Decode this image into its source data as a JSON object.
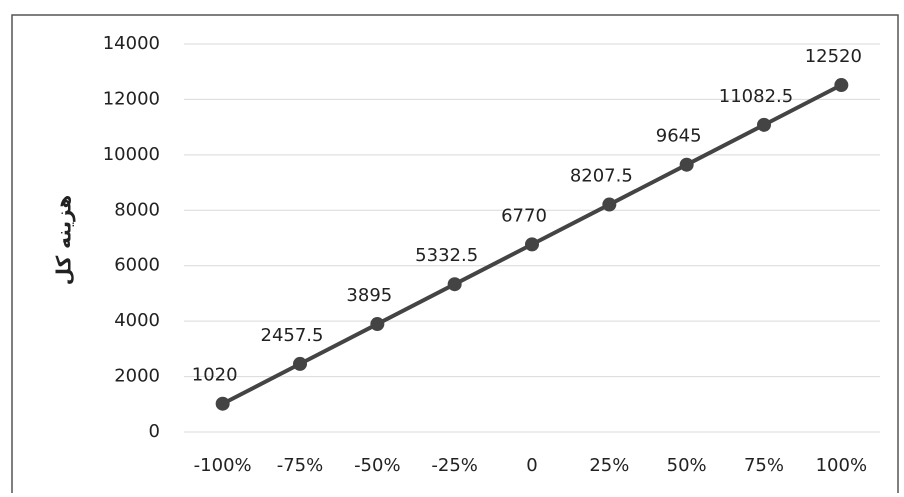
{
  "chart_data": {
    "type": "line",
    "y_label": "هزینه کل",
    "categories": [
      "-100%",
      "-75%",
      "-50%",
      "-25%",
      "0",
      "25%",
      "50%",
      "75%",
      "100%"
    ],
    "values": [
      1020,
      2457.5,
      3895,
      5332.5,
      6770,
      8207.5,
      9645,
      11082.5,
      12520
    ],
    "color": "#444444",
    "ylim": [
      0,
      14000
    ],
    "yticks": [
      0,
      2000,
      4000,
      6000,
      8000,
      10000,
      12000,
      14000
    ],
    "grid": true
  }
}
